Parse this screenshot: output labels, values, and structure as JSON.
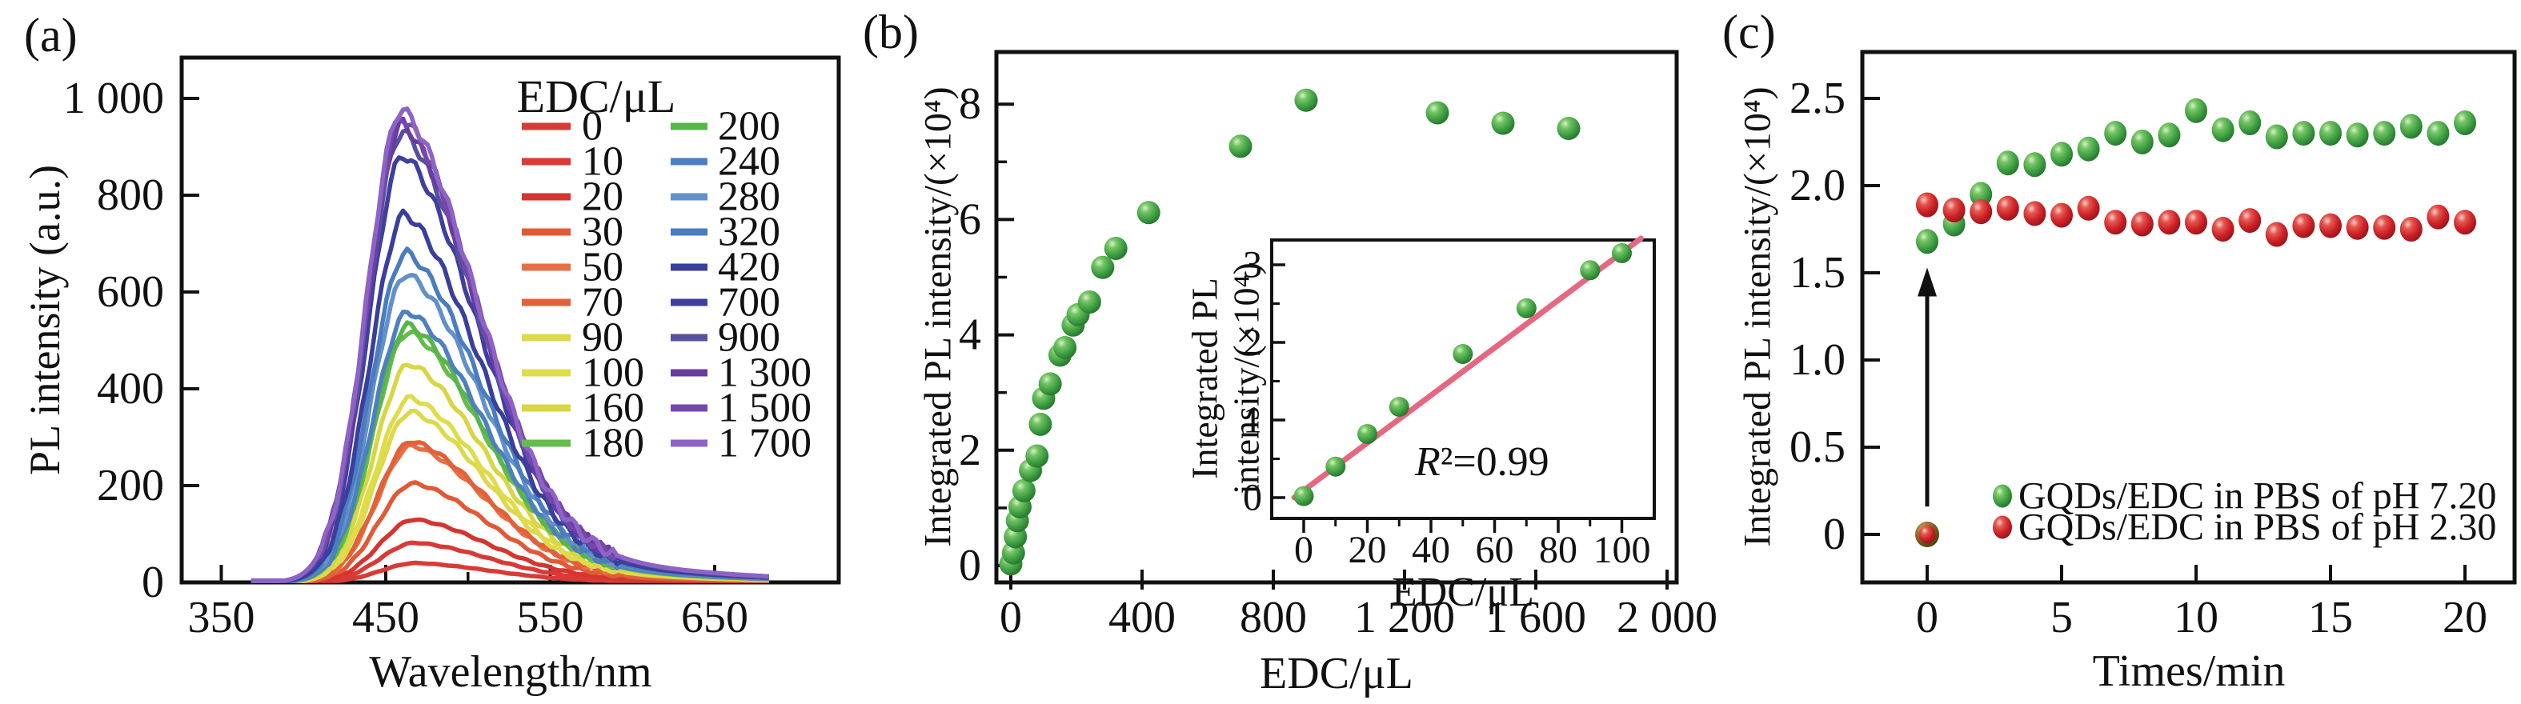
{
  "chart_data": [
    {
      "id": "a",
      "panel_label": "(a)",
      "type": "line",
      "xlabel": "Wavelength/nm",
      "ylabel": "PL intensity (a.u.)",
      "xlim": [
        325,
        725
      ],
      "ylim": [
        0,
        1085
      ],
      "xticks": {
        "values": [
          350,
          450,
          550,
          650
        ],
        "labels": [
          "350",
          "450",
          "550",
          "650"
        ]
      },
      "xticks_minor": [
        400,
        500,
        600
      ],
      "yticks": {
        "values": [
          0,
          200,
          400,
          600,
          800,
          1000
        ],
        "labels": [
          "0",
          "200",
          "400",
          "600",
          "800",
          "1 000"
        ]
      },
      "grid": false,
      "legend_position": "top-right-two-columns",
      "legend_title": "EDC/μL",
      "series": [
        {
          "label": "0",
          "color": "#d93a35",
          "peak_intensity": 40
        },
        {
          "label": "10",
          "color": "#d93a35",
          "peak_intensity": 82
        },
        {
          "label": "20",
          "color": "#d5342f",
          "peak_intensity": 130
        },
        {
          "label": "30",
          "color": "#e15935",
          "peak_intensity": 205
        },
        {
          "label": "50",
          "color": "#e76f45",
          "peak_intensity": 283
        },
        {
          "label": "70",
          "color": "#e2603a",
          "peak_intensity": 292
        },
        {
          "label": "90",
          "color": "#ded94c",
          "peak_intensity": 353
        },
        {
          "label": "100",
          "color": "#dfdc4a",
          "peak_intensity": 382
        },
        {
          "label": "160",
          "color": "#d9d646",
          "peak_intensity": 452
        },
        {
          "label": "180",
          "color": "#66bb4f",
          "peak_intensity": 518
        },
        {
          "label": "200",
          "color": "#58b549",
          "peak_intensity": 532
        },
        {
          "label": "240",
          "color": "#4e7fc0",
          "peak_intensity": 560
        },
        {
          "label": "280",
          "color": "#6190ca",
          "peak_intensity": 638
        },
        {
          "label": "320",
          "color": "#4a7cbf",
          "peak_intensity": 682
        },
        {
          "label": "420",
          "color": "#3a3f9c",
          "peak_intensity": 762
        },
        {
          "label": "700",
          "color": "#3f3f9f",
          "peak_intensity": 884
        },
        {
          "label": "900",
          "color": "#57509f",
          "peak_intensity": 932
        },
        {
          "label": "1 300",
          "color": "#6a3ba1",
          "peak_intensity": 948
        },
        {
          "label": "1 500",
          "color": "#7647ab",
          "peak_intensity": 962
        },
        {
          "label": "1 700",
          "color": "#8d64c6",
          "peak_intensity": 978
        }
      ],
      "curve_shape": {
        "peak_wavelength_base": 469,
        "peak_shift_per_1000": 9,
        "sigma_left": 21.5,
        "sigma_right": 46,
        "tail_tau": 75,
        "gauss_weight": 0.75,
        "onset": 368,
        "end": 685
      }
    },
    {
      "id": "b",
      "panel_label": "(b)",
      "type": "scatter",
      "xlabel": "EDC/μL",
      "ylabel": "Integrated PL intensity/(×10⁴)",
      "xlim": [
        -44,
        2029
      ],
      "ylim": [
        -0.29,
        8.9
      ],
      "xticks": {
        "values": [
          0,
          400,
          800,
          1200,
          1600,
          2000
        ],
        "labels": [
          "0",
          "400",
          "800",
          "1 200",
          "1 600",
          "2 000"
        ]
      },
      "yticks": {
        "values": [
          0,
          2,
          4,
          6,
          8
        ],
        "labels": [
          "0",
          "2",
          "4",
          "6",
          "8"
        ]
      },
      "yticks_minor": [
        1,
        3,
        5,
        7
      ],
      "grid": false,
      "marker_color": "#3f9f44",
      "points": [
        [
          0,
          0.03
        ],
        [
          8,
          0.22
        ],
        [
          14,
          0.5
        ],
        [
          20,
          0.78
        ],
        [
          28,
          1.02
        ],
        [
          40,
          1.3
        ],
        [
          60,
          1.65
        ],
        [
          80,
          1.9
        ],
        [
          90,
          2.45
        ],
        [
          100,
          2.9
        ],
        [
          120,
          3.15
        ],
        [
          150,
          3.65
        ],
        [
          165,
          3.78
        ],
        [
          190,
          4.17
        ],
        [
          205,
          4.35
        ],
        [
          240,
          4.57
        ],
        [
          280,
          5.17
        ],
        [
          320,
          5.5
        ],
        [
          420,
          6.12
        ],
        [
          700,
          7.27
        ],
        [
          900,
          8.07
        ],
        [
          1300,
          7.85
        ],
        [
          1500,
          7.67
        ],
        [
          1700,
          7.58
        ]
      ],
      "inset": {
        "type": "scatter-with-fit",
        "xlabel": "EDC/μL",
        "ylabel_line1": "Integrated PL",
        "ylabel_line2": "intensity/(×10⁴)",
        "xlim": [
          -10,
          110
        ],
        "ylim": [
          -0.27,
          3.32
        ],
        "xticks": {
          "values": [
            0,
            20,
            40,
            60,
            80,
            100
          ],
          "labels": [
            "0",
            "20",
            "40",
            "60",
            "80",
            "100"
          ]
        },
        "xticks_minor": [
          10,
          30,
          50,
          70,
          90
        ],
        "yticks": {
          "values": [
            0,
            1,
            2,
            3
          ],
          "labels": [
            "0",
            "1",
            "2",
            "3"
          ]
        },
        "yticks_minor": [
          0.5,
          1.5,
          2.5
        ],
        "marker_color": "#3f9f44",
        "points": [
          [
            0,
            0.02
          ],
          [
            10,
            0.4
          ],
          [
            20,
            0.82
          ],
          [
            30,
            1.17
          ],
          [
            50,
            1.85
          ],
          [
            70,
            2.44
          ],
          [
            90,
            2.93
          ],
          [
            100,
            3.15
          ]
        ],
        "fit_line": {
          "x1": -3,
          "y1": 0.0,
          "x2": 106,
          "y2": 3.34,
          "color": "#e56880"
        },
        "r2_text": "R²=0.99"
      }
    },
    {
      "id": "c",
      "panel_label": "(c)",
      "type": "scatter",
      "xlabel": "Times/min",
      "ylabel": "Integrated PL intensity/(×10⁴)",
      "xlim": [
        -2.4,
        21.8
      ],
      "ylim": [
        -0.28,
        2.77
      ],
      "xticks": {
        "values": [
          0,
          5,
          10,
          15,
          20
        ],
        "labels": [
          "0",
          "5",
          "10",
          "15",
          "20"
        ]
      },
      "yticks": {
        "values": [
          0,
          0.5,
          1.0,
          1.5,
          2.0,
          2.5
        ],
        "labels": [
          "0",
          "0.5",
          "1.0",
          "1.5",
          "2.0",
          "2.5"
        ]
      },
      "grid": false,
      "x_shared": [
        0,
        1,
        2,
        3,
        4,
        5,
        6,
        7,
        8,
        9,
        10,
        11,
        12,
        13,
        14,
        15,
        16,
        17,
        18,
        19,
        20
      ],
      "series": [
        {
          "name": "GQDs/EDC in PBS of pH 7.20",
          "color": "#3f9f44",
          "values": [
            1.68,
            1.78,
            1.95,
            2.13,
            2.12,
            2.18,
            2.21,
            2.3,
            2.25,
            2.29,
            2.43,
            2.32,
            2.36,
            2.28,
            2.3,
            2.3,
            2.29,
            2.3,
            2.34,
            2.3,
            2.36
          ]
        },
        {
          "name": "GQDs/EDC in PBS of pH 2.30",
          "color": "#cc2127",
          "values": [
            1.89,
            1.86,
            1.85,
            1.87,
            1.84,
            1.83,
            1.87,
            1.79,
            1.78,
            1.79,
            1.79,
            1.75,
            1.8,
            1.72,
            1.77,
            1.77,
            1.76,
            1.76,
            1.75,
            1.82,
            1.79
          ]
        }
      ],
      "origin_point": {
        "x": 0,
        "y": 0,
        "color": "#7c5a22"
      },
      "arrow": {
        "x": 0,
        "y_start": 0.16,
        "y_end": 1.53,
        "color": "#111111"
      },
      "legend": [
        {
          "label": "GQDs/EDC in PBS of pH 7.20",
          "color": "#3f9f44"
        },
        {
          "label": "GQDs/EDC in PBS of pH 2.30",
          "color": "#cc2127"
        }
      ],
      "legend_position": "bottom-right-inside"
    }
  ]
}
